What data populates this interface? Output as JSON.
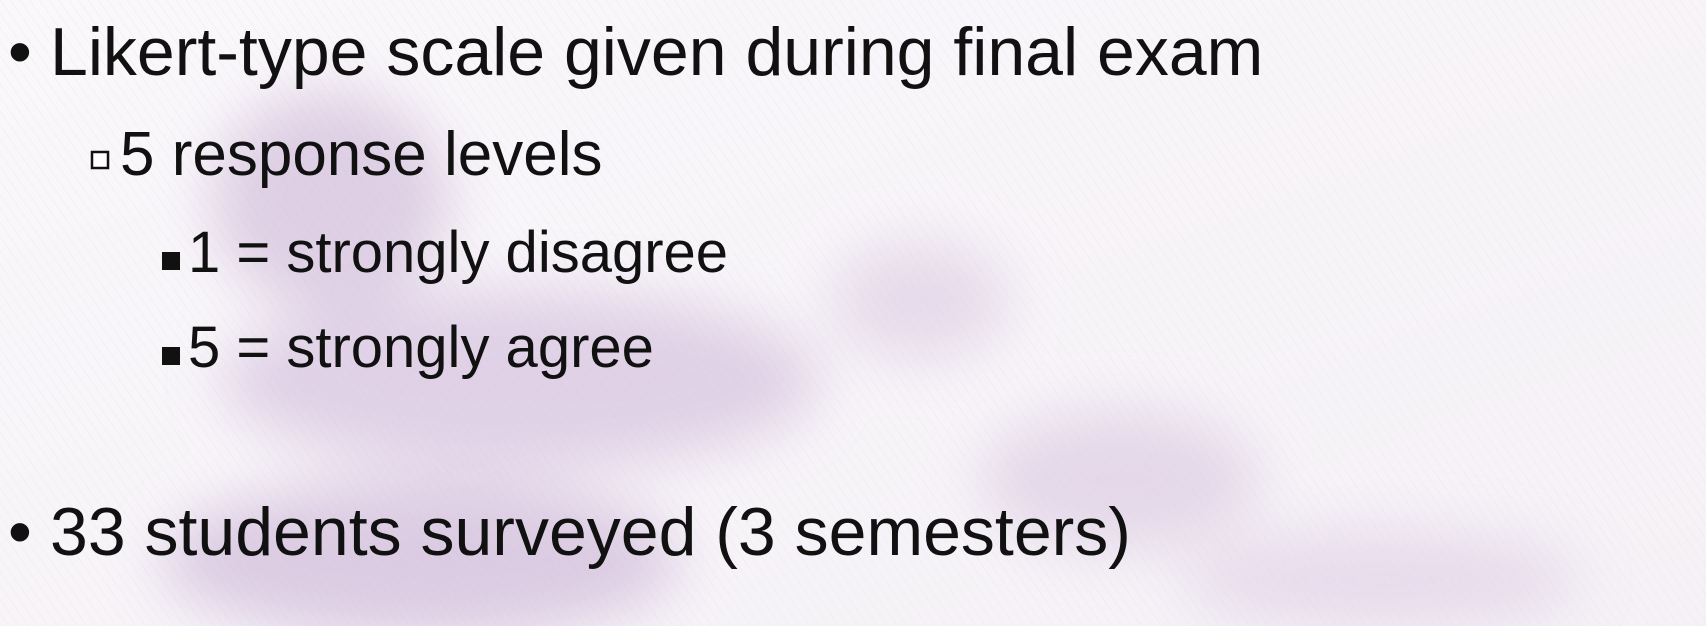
{
  "bullets": [
    {
      "text": "Likert-type scale given during final exam",
      "children": [
        {
          "text": "5 response levels",
          "children": [
            {
              "text": "1 = strongly disagree"
            },
            {
              "text": "5 = strongly agree"
            }
          ]
        }
      ]
    },
    {
      "text": "33 students surveyed (3 semesters)"
    }
  ]
}
